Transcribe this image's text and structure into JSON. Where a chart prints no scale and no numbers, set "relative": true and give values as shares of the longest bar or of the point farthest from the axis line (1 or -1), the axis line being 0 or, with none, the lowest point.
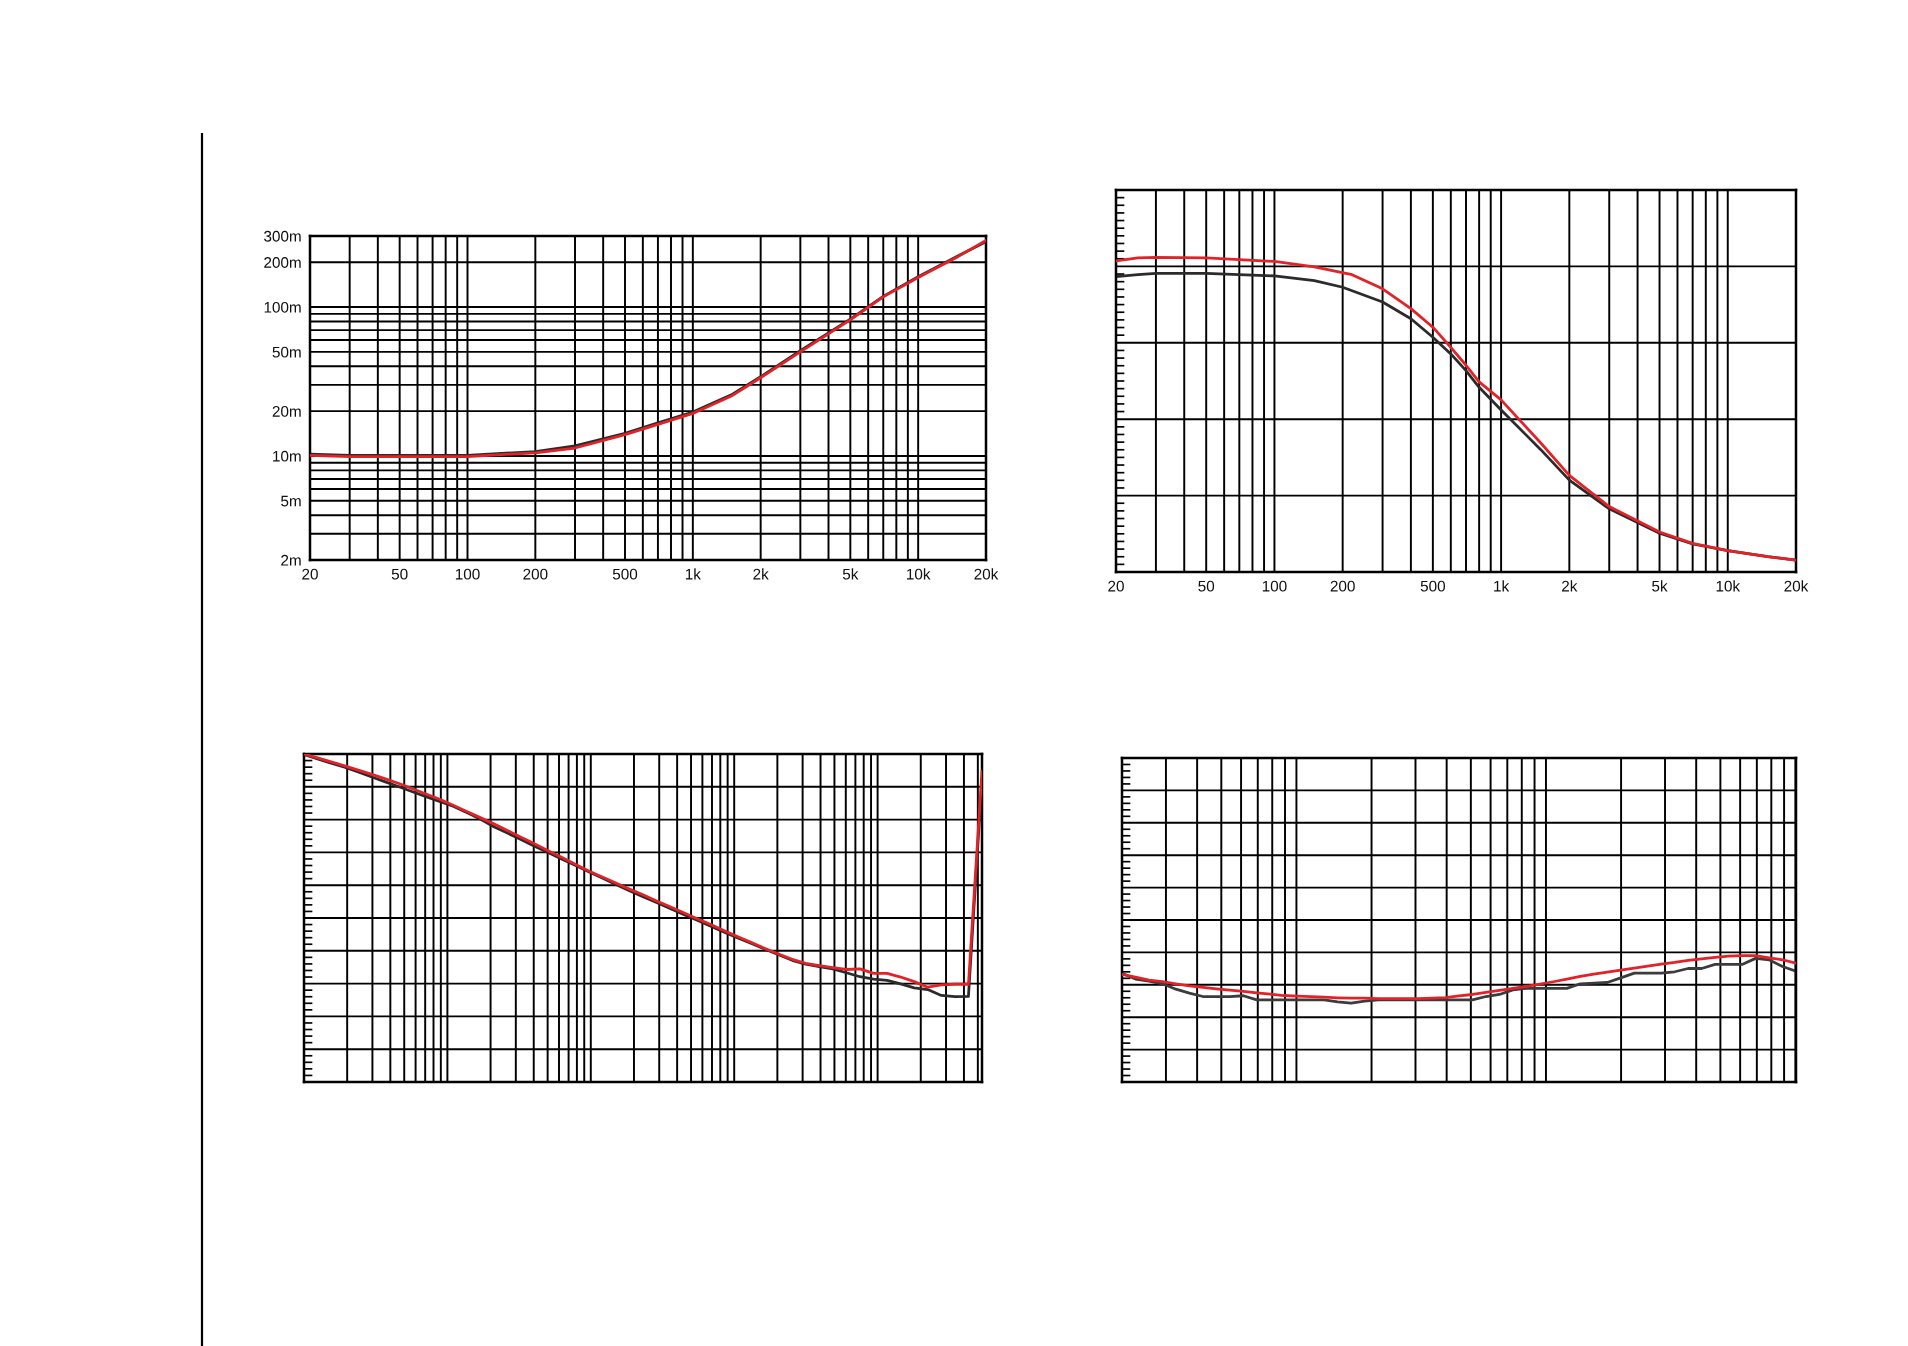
{
  "chart_data": [
    {
      "type": "line",
      "log": "xy",
      "grid": true,
      "x": [
        20,
        30,
        50,
        100,
        200,
        300,
        500,
        700,
        1000,
        1500,
        2000,
        3000,
        5000,
        7000,
        10000,
        15000,
        20000
      ],
      "series": [
        {
          "color": "#2b2b2b",
          "values": [
            10.3,
            10.1,
            10.1,
            10.1,
            10.7,
            11.7,
            14.2,
            16.7,
            19.7,
            26,
            34,
            51,
            83,
            118,
            160,
            220,
            275
          ]
        },
        {
          "color": "#e32228",
          "values": [
            10.1,
            9.9,
            9.9,
            9.9,
            10.5,
            11.3,
            13.9,
            16.3,
            19.3,
            25.5,
            33.5,
            50,
            82,
            117,
            158,
            218,
            280
          ]
        }
      ],
      "xlim": [
        20,
        20000
      ],
      "xticks": [
        20,
        {
          "value": 30,
          "label": null
        },
        {
          "value": 40,
          "label": null
        },
        50,
        {
          "value": 60,
          "label": null
        },
        {
          "value": 70,
          "label": null
        },
        {
          "value": 80,
          "label": null
        },
        {
          "value": 90,
          "label": null
        },
        100,
        200,
        {
          "value": 300,
          "label": null
        },
        {
          "value": 400,
          "label": null
        },
        500,
        {
          "value": 600,
          "label": null
        },
        {
          "value": 700,
          "label": null
        },
        {
          "value": 800,
          "label": null
        },
        {
          "value": 900,
          "label": null
        },
        {
          "value": 1000,
          "label": "1k"
        },
        {
          "value": 2000,
          "label": "2k"
        },
        {
          "value": 3000,
          "label": null
        },
        {
          "value": 4000,
          "label": null
        },
        {
          "value": 5000,
          "label": "5k"
        },
        {
          "value": 6000,
          "label": null
        },
        {
          "value": 7000,
          "label": null
        },
        {
          "value": 8000,
          "label": null
        },
        {
          "value": 9000,
          "label": null
        },
        {
          "value": 10000,
          "label": "10k"
        },
        {
          "value": 20000,
          "label": "20k"
        }
      ],
      "ylim": [
        2,
        300
      ],
      "yticks": [
        {
          "value": 2,
          "label": "2m"
        },
        {
          "value": 3,
          "label": null
        },
        {
          "value": 4,
          "label": null
        },
        {
          "value": 5,
          "label": "5m"
        },
        {
          "value": 6,
          "label": null
        },
        {
          "value": 7,
          "label": null
        },
        {
          "value": 8,
          "label": null
        },
        {
          "value": 9,
          "label": null
        },
        {
          "value": 10,
          "label": "10m"
        },
        {
          "value": 20,
          "label": "20m"
        },
        {
          "value": 30,
          "label": null
        },
        {
          "value": 40,
          "label": null
        },
        {
          "value": 50,
          "label": "50m"
        },
        {
          "value": 60,
          "label": null
        },
        {
          "value": 70,
          "label": null
        },
        {
          "value": 80,
          "label": null
        },
        {
          "value": 90,
          "label": null
        },
        {
          "value": 100,
          "label": "100m"
        },
        {
          "value": 200,
          "label": "200m"
        },
        {
          "value": 300,
          "label": "300m"
        }
      ]
    },
    {
      "type": "line",
      "log": "x",
      "grid": true,
      "relative": true,
      "tick_labels": "x",
      "series": [
        {
          "color": "#2b2b2b",
          "x": [
            20,
            25,
            30,
            50,
            100,
            150,
            200,
            300,
            400,
            500,
            600,
            700,
            800,
            1000,
            1500,
            2000,
            3000,
            5000,
            7000,
            10000,
            15000,
            20000
          ],
          "values": [
            0.939,
            0.945,
            0.949,
            0.949,
            0.941,
            0.926,
            0.905,
            0.858,
            0.805,
            0.746,
            0.693,
            0.64,
            0.587,
            0.515,
            0.388,
            0.292,
            0.201,
            0.123,
            0.089,
            0.068,
            0.049,
            0.038
          ]
        },
        {
          "color": "#e32228",
          "x": [
            20,
            25,
            30,
            50,
            100,
            150,
            220,
            300,
            400,
            500,
            600,
            700,
            800,
            1000,
            1500,
            2000,
            3000,
            5000,
            7000,
            10000,
            15000,
            20000
          ],
          "values": [
            0.989,
            0.998,
            1.0,
            0.998,
            0.987,
            0.97,
            0.945,
            0.9,
            0.837,
            0.778,
            0.714,
            0.657,
            0.604,
            0.547,
            0.409,
            0.307,
            0.208,
            0.127,
            0.091,
            0.068,
            0.049,
            0.038
          ]
        }
      ],
      "xlim": [
        20,
        20000
      ],
      "xticks": [
        20,
        {
          "value": 30,
          "label": null
        },
        {
          "value": 40,
          "label": null
        },
        50,
        {
          "value": 60,
          "label": null
        },
        {
          "value": 70,
          "label": null
        },
        {
          "value": 80,
          "label": null
        },
        {
          "value": 90,
          "label": null
        },
        100,
        200,
        {
          "value": 300,
          "label": null
        },
        {
          "value": 400,
          "label": null
        },
        500,
        {
          "value": 600,
          "label": null
        },
        {
          "value": 700,
          "label": null
        },
        {
          "value": 800,
          "label": null
        },
        {
          "value": 900,
          "label": null
        },
        {
          "value": 1000,
          "label": "1k"
        },
        {
          "value": 2000,
          "label": "2k"
        },
        {
          "value": 3000,
          "label": null
        },
        {
          "value": 4000,
          "label": null
        },
        {
          "value": 5000,
          "label": "5k"
        },
        {
          "value": 6000,
          "label": null
        },
        {
          "value": 7000,
          "label": null
        },
        {
          "value": 8000,
          "label": null
        },
        {
          "value": 9000,
          "label": null
        },
        {
          "value": 10000,
          "label": "10k"
        },
        {
          "value": 20000,
          "label": "20k"
        }
      ]
    },
    {
      "type": "line",
      "grid": true,
      "relative": true,
      "tick_labels": false,
      "categories": [
        null,
        null,
        null,
        null,
        null,
        null,
        null,
        null,
        null,
        null,
        null,
        null,
        null,
        null,
        null,
        null,
        null,
        null,
        null,
        null,
        null,
        null,
        null,
        null,
        null,
        null,
        null,
        null,
        null,
        null,
        null,
        null,
        null,
        null,
        null,
        null,
        null,
        null,
        null,
        null,
        null,
        null,
        null,
        null,
        null,
        null,
        null,
        null,
        null,
        null,
        null
      ],
      "series": [
        {
          "color": "#2b2b2b",
          "values": [
            0.998,
            0.985,
            0.972,
            0.96,
            0.945,
            0.93,
            0.915,
            0.9,
            0.885,
            0.87,
            0.855,
            0.841,
            0.822,
            0.802,
            0.778,
            0.759,
            0.739,
            0.719,
            0.7,
            0.68,
            0.661,
            0.641,
            0.622,
            0.602,
            0.583,
            0.565,
            0.547,
            0.529,
            0.511,
            0.493,
            0.475,
            0.457,
            0.439,
            0.422,
            0.405,
            0.388,
            0.371,
            0.359,
            0.352,
            0.345,
            0.333,
            0.321,
            0.314,
            0.31,
            0.299,
            0.287,
            0.282,
            0.264,
            0.26,
            0.261,
            0.927
          ]
        },
        {
          "color": "#e32228",
          "values": [
            1.0,
            0.988,
            0.976,
            0.964,
            0.951,
            0.938,
            0.924,
            0.91,
            0.894,
            0.878,
            0.862,
            0.844,
            0.825,
            0.806,
            0.787,
            0.767,
            0.746,
            0.726,
            0.705,
            0.685,
            0.664,
            0.643,
            0.625,
            0.607,
            0.588,
            0.571,
            0.552,
            0.534,
            0.516,
            0.498,
            0.48,
            0.461,
            0.443,
            0.425,
            0.407,
            0.39,
            0.374,
            0.362,
            0.355,
            0.349,
            0.343,
            0.345,
            0.331,
            0.331,
            0.32,
            0.306,
            0.289,
            0.296,
            0.298,
            0.298,
            0.947
          ]
        }
      ]
    },
    {
      "type": "line",
      "grid": true,
      "relative": true,
      "tick_labels": false,
      "categories": [
        null,
        null,
        null,
        null,
        null,
        null,
        null,
        null,
        null,
        null,
        null,
        null,
        null,
        null,
        null,
        null,
        null,
        null,
        null,
        null,
        null,
        null,
        null,
        null,
        null,
        null,
        null,
        null,
        null,
        null,
        null,
        null,
        null,
        null,
        null,
        null,
        null,
        null,
        null,
        null,
        null,
        null,
        null,
        null,
        null,
        null,
        null,
        null,
        null,
        null,
        null
      ],
      "series": [
        {
          "color": "#3c3c3c",
          "values": [
            0.862,
            0.815,
            0.799,
            0.778,
            0.735,
            0.704,
            0.677,
            0.677,
            0.677,
            0.683,
            0.651,
            0.651,
            0.651,
            0.651,
            0.651,
            0.651,
            0.635,
            0.624,
            0.64,
            0.651,
            0.651,
            0.651,
            0.651,
            0.651,
            0.651,
            0.651,
            0.651,
            0.677,
            0.693,
            0.73,
            0.741,
            0.741,
            0.741,
            0.741,
            0.778,
            0.783,
            0.788,
            0.825,
            0.862,
            0.862,
            0.862,
            0.873,
            0.899,
            0.899,
            0.931,
            0.931,
            0.931,
            0.979,
            0.968,
            0.915,
            0.878
          ]
        },
        {
          "color": "#e32228",
          "values": [
            0.852,
            0.831,
            0.807,
            0.794,
            0.778,
            0.762,
            0.749,
            0.738,
            0.728,
            0.717,
            0.706,
            0.696,
            0.685,
            0.68,
            0.677,
            0.672,
            0.667,
            0.664,
            0.664,
            0.661,
            0.661,
            0.661,
            0.661,
            0.664,
            0.669,
            0.683,
            0.693,
            0.709,
            0.725,
            0.741,
            0.757,
            0.775,
            0.794,
            0.815,
            0.836,
            0.854,
            0.87,
            0.886,
            0.902,
            0.918,
            0.934,
            0.947,
            0.963,
            0.976,
            0.987,
            0.997,
            1.0,
            1.0,
            0.984,
            0.968,
            0.942
          ]
        }
      ]
    }
  ]
}
